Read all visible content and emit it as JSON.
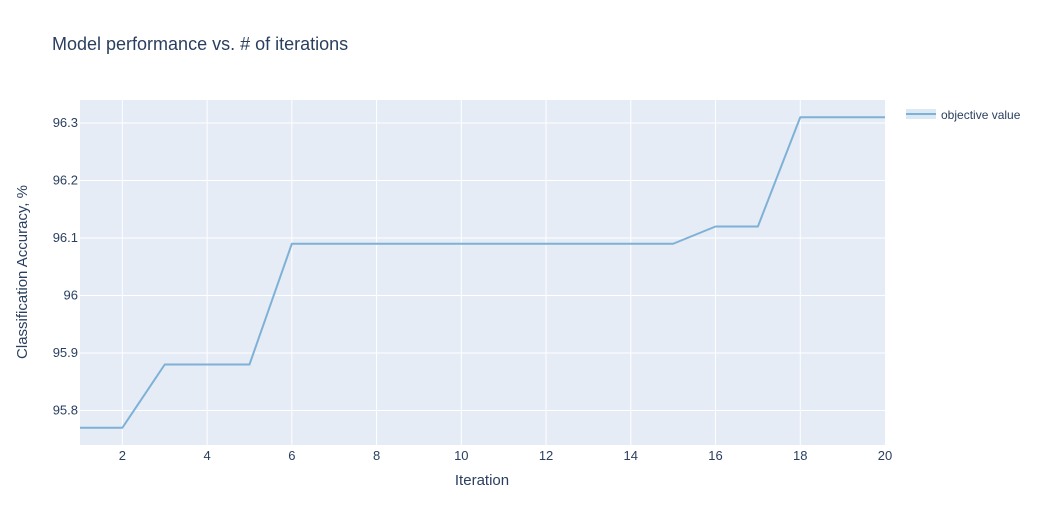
{
  "chart_data": {
    "type": "line",
    "title": "Model performance vs. # of iterations",
    "xlabel": "Iteration",
    "ylabel": "Classification Accuracy, %",
    "xlim": [
      1,
      20
    ],
    "ylim": [
      95.74,
      96.34
    ],
    "x_ticks": [
      2,
      4,
      6,
      8,
      10,
      12,
      14,
      16,
      18,
      20
    ],
    "x_tick_labels": [
      "2",
      "4",
      "6",
      "8",
      "10",
      "12",
      "14",
      "16",
      "18",
      "20"
    ],
    "y_ticks": [
      95.8,
      95.9,
      96.0,
      96.1,
      96.2,
      96.3
    ],
    "y_tick_labels": [
      "95.8",
      "95.9",
      "96",
      "96.1",
      "96.2",
      "96.3"
    ],
    "grid": true,
    "legend_position": "top-right",
    "series": [
      {
        "name": "objective value",
        "color": "#7fb1d6",
        "x": [
          1,
          2,
          3,
          4,
          5,
          6,
          7,
          8,
          9,
          10,
          11,
          12,
          13,
          14,
          15,
          16,
          17,
          18,
          19,
          20
        ],
        "y": [
          95.77,
          95.77,
          95.88,
          95.88,
          95.88,
          96.09,
          96.09,
          96.09,
          96.09,
          96.09,
          96.09,
          96.09,
          96.09,
          96.09,
          96.09,
          96.12,
          96.12,
          96.31,
          96.31,
          96.31
        ]
      }
    ]
  },
  "colors": {
    "plot_background": "#e5ecf6",
    "grid": "#ffffff",
    "text": "#2a3f5f"
  }
}
